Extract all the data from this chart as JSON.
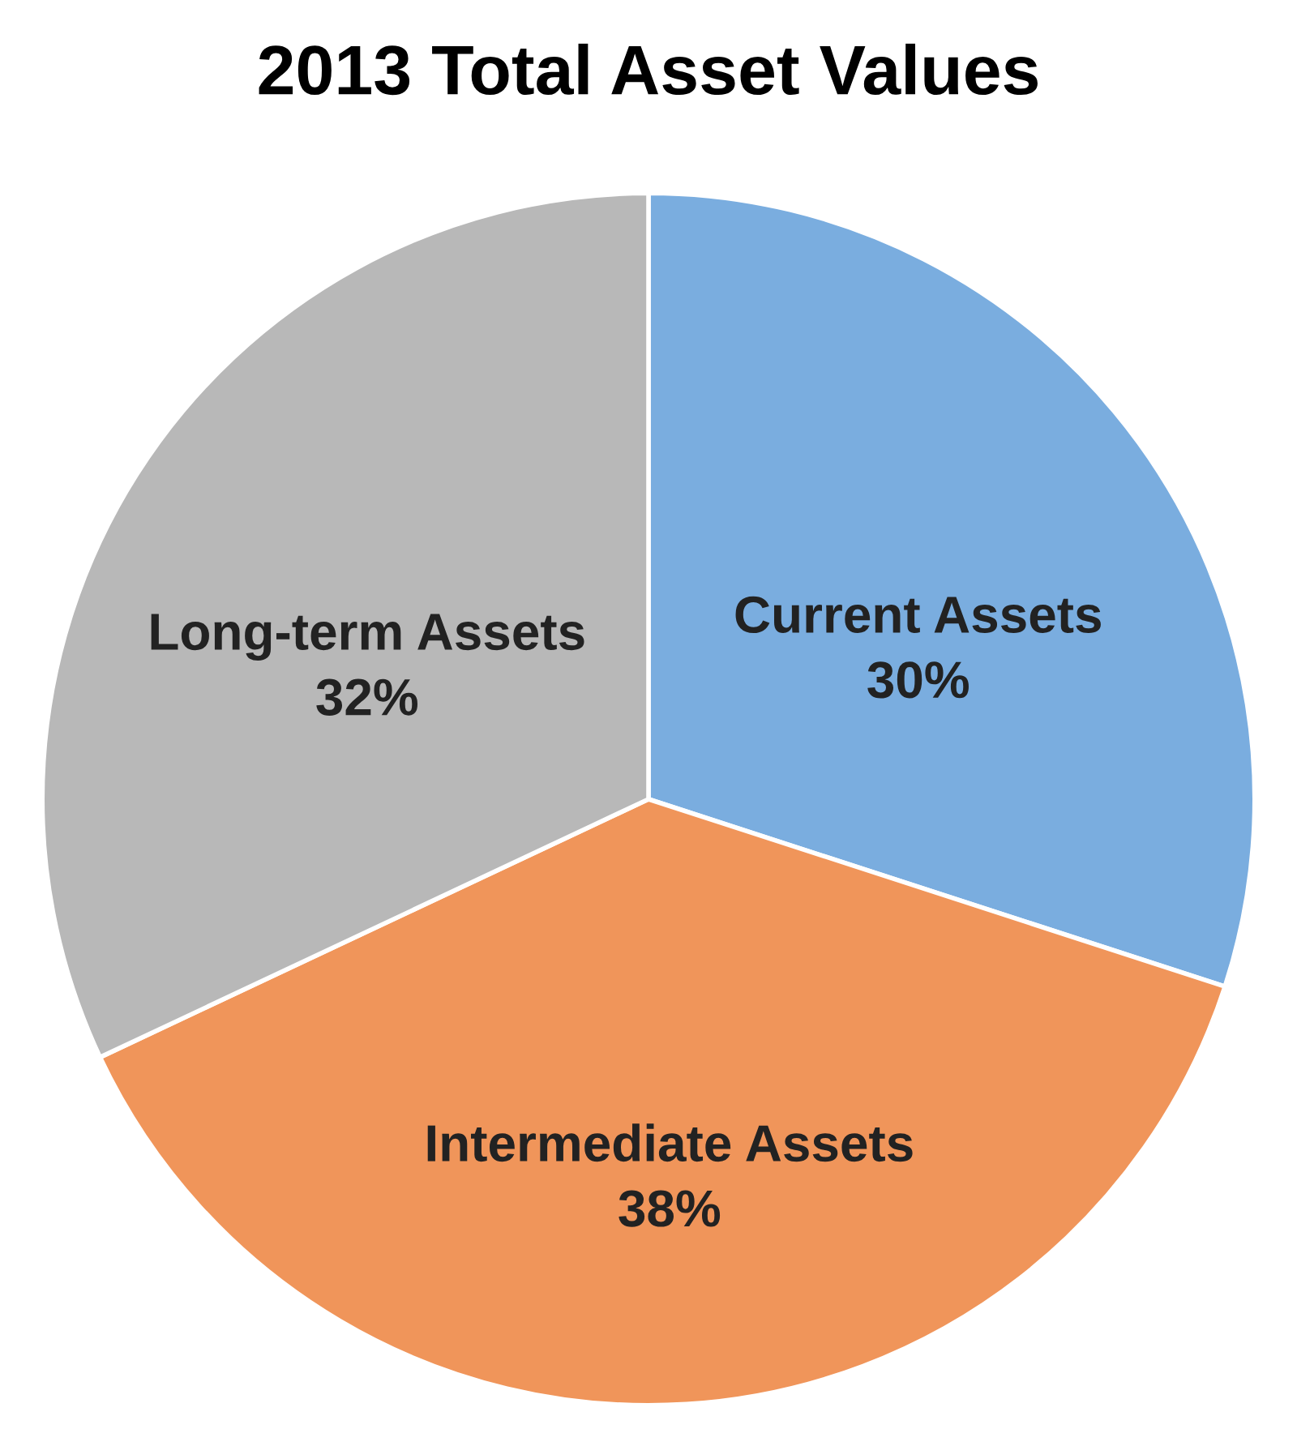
{
  "chart_data": {
    "type": "pie",
    "title": "2013 Total Asset Values",
    "categories": [
      "Current Assets",
      "Intermediate Assets",
      "Long-term Assets"
    ],
    "values": [
      30,
      38,
      32
    ],
    "value_labels": [
      "30%",
      "38%",
      "32%"
    ],
    "colors": [
      "#7aaddf",
      "#f0955a",
      "#b8b8b8"
    ],
    "legend": false
  }
}
